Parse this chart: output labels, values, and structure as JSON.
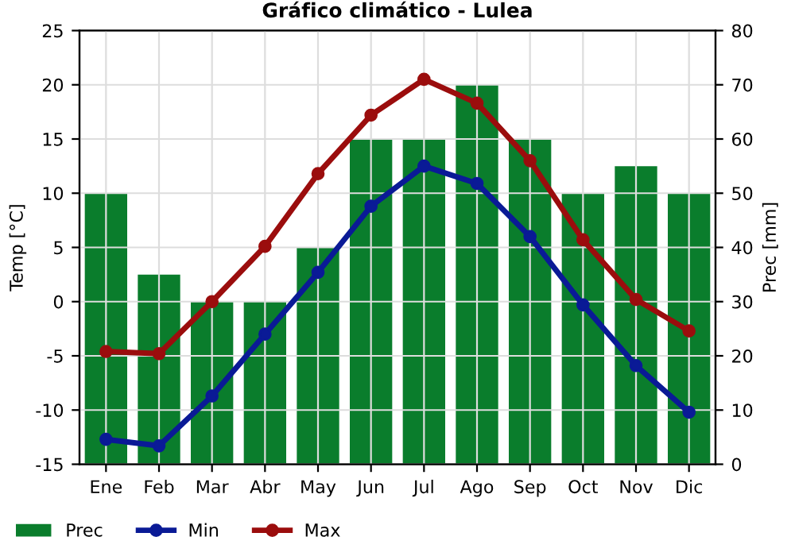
{
  "chart_data": {
    "type": "line",
    "title": "Gráfico climático - Lulea",
    "ylabel": "Temp [°C]",
    "y2label": "Prec [mm]",
    "categories": [
      "Ene",
      "Feb",
      "Mar",
      "Abr",
      "May",
      "Jun",
      "Jul",
      "Ago",
      "Sep",
      "Oct",
      "Nov",
      "Dic"
    ],
    "series": [
      {
        "name": "Prec",
        "type": "bar",
        "axis": "y2",
        "color": "#0a7d2c",
        "values": [
          50,
          35,
          30,
          30,
          40,
          60,
          60,
          70,
          60,
          50,
          55,
          50
        ]
      },
      {
        "name": "Min",
        "color": "#0a1a96",
        "marker": "circle",
        "values": [
          -12.7,
          -13.3,
          -8.7,
          -3.0,
          2.7,
          8.8,
          12.5,
          10.9,
          6.0,
          -0.3,
          -5.9,
          -10.2
        ]
      },
      {
        "name": "Max",
        "color": "#9b0d0d",
        "marker": "circle",
        "values": [
          -4.6,
          -4.8,
          0.0,
          5.1,
          11.8,
          17.2,
          20.5,
          18.3,
          13.0,
          5.7,
          0.2,
          -2.7
        ]
      }
    ],
    "ylim": [
      -15,
      25
    ],
    "yticks": [
      -15,
      -10,
      -5,
      0,
      5,
      10,
      15,
      20,
      25
    ],
    "y2lim": [
      0,
      80
    ],
    "y2ticks": [
      0,
      10,
      20,
      30,
      40,
      50,
      60,
      70,
      80
    ],
    "grid": true,
    "legend": "bottom"
  }
}
